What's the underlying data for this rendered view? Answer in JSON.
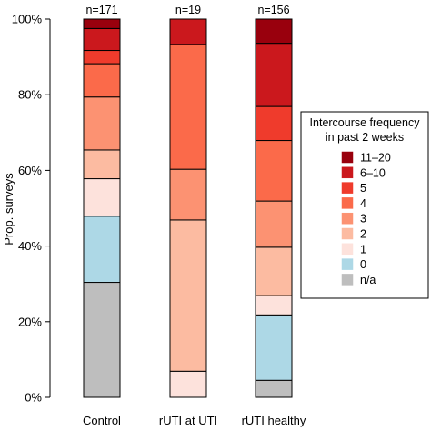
{
  "chart_data": {
    "type": "bar",
    "stacked": true,
    "ylabel": "Prop. surveys",
    "ylim": [
      0,
      100
    ],
    "yticks": [
      0,
      20,
      40,
      60,
      80,
      100
    ],
    "ytick_labels": [
      "0%",
      "20%",
      "40%",
      "60%",
      "80%",
      "100%"
    ],
    "categories": [
      "Control",
      "rUTI at UTI",
      "rUTI healthy"
    ],
    "counts": [
      "n=171",
      "n=19",
      "n=156"
    ],
    "legend_position": "right",
    "legend_title_lines": [
      "Intercourse frequency",
      "in past 2 weeks"
    ],
    "series": [
      {
        "name": "n/a",
        "color": "#bebebe",
        "values": [
          30.4,
          0.0,
          4.5
        ]
      },
      {
        "name": "0",
        "color": "#add8e6",
        "values": [
          17.5,
          0.0,
          17.3
        ]
      },
      {
        "name": "1",
        "color": "#fde2dc",
        "values": [
          9.9,
          6.9,
          5.1
        ]
      },
      {
        "name": "2",
        "color": "#fcbba1",
        "values": [
          7.6,
          40.0,
          12.8
        ]
      },
      {
        "name": "3",
        "color": "#fc9272",
        "values": [
          14.0,
          13.4,
          12.2
        ]
      },
      {
        "name": "4",
        "color": "#fb6a4a",
        "values": [
          8.8,
          33.0,
          16.0
        ]
      },
      {
        "name": "5",
        "color": "#ef3b2c",
        "values": [
          3.5,
          0.0,
          9.0
        ]
      },
      {
        "name": "6–10",
        "color": "#cb181d",
        "values": [
          5.8,
          6.7,
          16.7
        ]
      },
      {
        "name": "11–20",
        "color": "#99000d",
        "values": [
          2.5,
          0.0,
          6.4
        ]
      }
    ]
  }
}
